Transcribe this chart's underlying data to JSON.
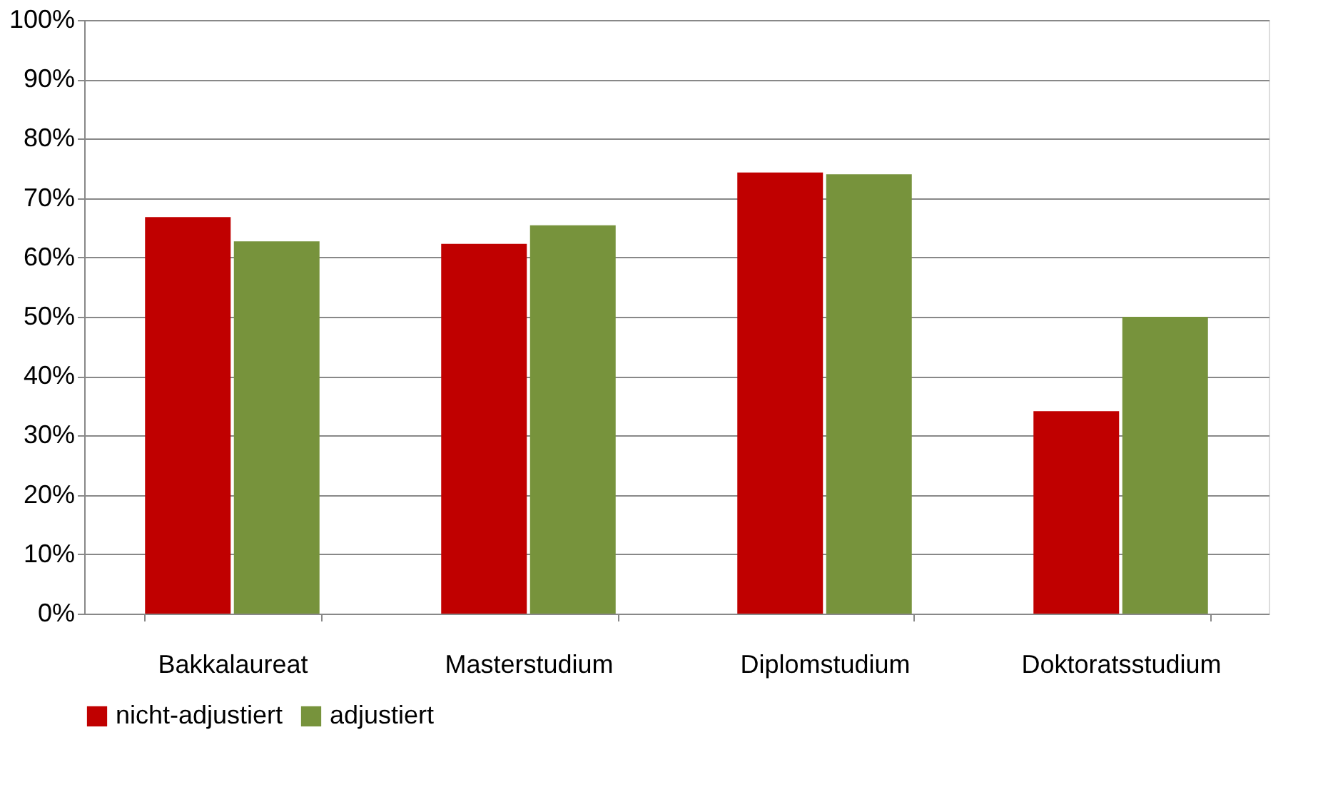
{
  "chart_data": {
    "type": "bar",
    "categories": [
      "Bakkalaureat",
      "Masterstudium",
      "Diplomstudium",
      "Doktoratsstudium"
    ],
    "series": [
      {
        "name": "nicht-adjustiert",
        "color": "#c00000",
        "values": [
          66.8,
          62.3,
          74.3,
          34.1
        ]
      },
      {
        "name": "adjustiert",
        "color": "#77933c",
        "values": [
          62.7,
          65.4,
          74.0,
          50.0
        ]
      }
    ],
    "ylim": [
      0,
      100
    ],
    "yticks": [
      {
        "value": 0,
        "label": "0%"
      },
      {
        "value": 10,
        "label": "10%"
      },
      {
        "value": 20,
        "label": "20%"
      },
      {
        "value": 30,
        "label": "30%"
      },
      {
        "value": 40,
        "label": "40%"
      },
      {
        "value": 50,
        "label": "50%"
      },
      {
        "value": 60,
        "label": "60%"
      },
      {
        "value": 70,
        "label": "70%"
      },
      {
        "value": 80,
        "label": "80%"
      },
      {
        "value": 90,
        "label": "90%"
      },
      {
        "value": 100,
        "label": "100%"
      }
    ],
    "grid": "y",
    "legend": "bottom"
  }
}
